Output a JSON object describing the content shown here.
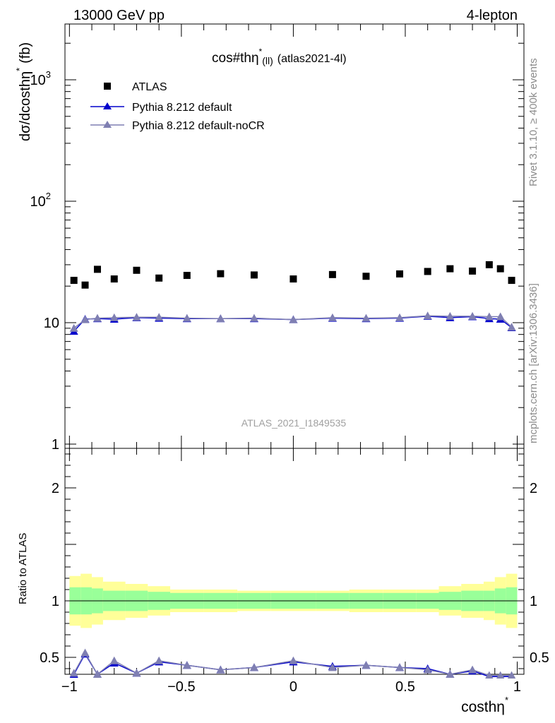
{
  "header": {
    "left": "13000 GeV pp",
    "right": "4-lepton",
    "side_rivet": "Rivet 3.1.10, ≥ 400k events",
    "side_mcplots": "mcplots.cern.ch [arXiv:1306.3436]"
  },
  "chart_data": [
    {
      "type": "scatter",
      "panel": "main",
      "title_main": "cos#thη",
      "title_sup": "*",
      "title_sub": "(ll)",
      "title_tag": "(atlas2021-4l)",
      "watermark": "ATLAS_2021_I1849535",
      "ylabel": "dσ/dcosthη",
      "ylabel_sup": "*",
      "ylabel_unit": "(fb)",
      "yscale": "log",
      "ylim": [
        1,
        3000
      ],
      "xlim": [
        -1.02,
        1.03
      ],
      "yticks": [
        {
          "value": 1,
          "label": "1",
          "sup": ""
        },
        {
          "value": 10,
          "label": "10",
          "sup": ""
        },
        {
          "value": 100,
          "label": "10",
          "sup": "2"
        },
        {
          "value": 1000,
          "label": "10",
          "sup": "3"
        }
      ],
      "legend": [
        "ATLAS",
        "Pythia 8.212 default",
        "Pythia 8.212 default-noCR"
      ],
      "x": [
        -0.98,
        -0.93,
        -0.875,
        -0.8,
        -0.7,
        -0.6,
        -0.475,
        -0.325,
        -0.175,
        0.0,
        0.175,
        0.325,
        0.475,
        0.6,
        0.7,
        0.8,
        0.875,
        0.925,
        0.975
      ],
      "series": [
        {
          "name": "ATLAS",
          "color": "#000000",
          "marker": "square",
          "values": [
            22.3,
            20.4,
            27.5,
            22.9,
            27.0,
            23.3,
            24.5,
            25.3,
            24.7,
            22.9,
            24.9,
            24.1,
            25.2,
            26.4,
            27.8,
            26.6,
            30.0,
            27.8,
            22.3
          ]
        },
        {
          "name": "Pythia 8.212 default",
          "color": "#0000cc",
          "marker": "triangle",
          "values": [
            8.5,
            10.7,
            10.8,
            10.7,
            11.0,
            10.9,
            10.8,
            10.8,
            10.8,
            10.6,
            10.9,
            10.8,
            10.9,
            11.3,
            11.0,
            11.2,
            10.8,
            10.7,
            9.1
          ]
        },
        {
          "name": "Pythia 8.212 default-noCR",
          "color": "#7f7fb2",
          "marker": "triangle",
          "values": [
            9.0,
            10.6,
            10.9,
            11.0,
            11.1,
            11.1,
            10.9,
            10.8,
            10.9,
            10.6,
            11.0,
            10.9,
            11.0,
            11.4,
            11.3,
            11.3,
            11.2,
            11.2,
            9.2
          ]
        }
      ]
    },
    {
      "type": "line",
      "panel": "ratio",
      "ylabel": "Ratio to ATLAS",
      "ylim": [
        0.35,
        2.35
      ],
      "xlim": [
        -1.02,
        1.03
      ],
      "xlabel": "costhη",
      "xlabel_sup": "*",
      "xticks": [
        {
          "value": -1,
          "label": "−1"
        },
        {
          "value": -0.5,
          "label": "−0.5"
        },
        {
          "value": 0,
          "label": "0"
        },
        {
          "value": 0.5,
          "label": "0.5"
        },
        {
          "value": 1,
          "label": "1"
        }
      ],
      "yticks": [
        {
          "value": 0.5,
          "label": "0.5"
        },
        {
          "value": 1,
          "label": "1"
        },
        {
          "value": 2,
          "label": "2"
        }
      ],
      "bands": {
        "edges": [
          -1.0,
          -0.95,
          -0.9,
          -0.85,
          -0.75,
          -0.65,
          -0.55,
          -0.4,
          -0.25,
          -0.1,
          0.1,
          0.25,
          0.4,
          0.55,
          0.65,
          0.75,
          0.85,
          0.9,
          0.95,
          1.0
        ],
        "inner": [
          0.12,
          0.12,
          0.11,
          0.09,
          0.09,
          0.08,
          0.07,
          0.07,
          0.07,
          0.07,
          0.07,
          0.07,
          0.07,
          0.07,
          0.08,
          0.09,
          0.09,
          0.11,
          0.12
        ],
        "outer": [
          0.22,
          0.24,
          0.21,
          0.17,
          0.15,
          0.13,
          0.1,
          0.1,
          0.09,
          0.09,
          0.09,
          0.1,
          0.1,
          0.1,
          0.13,
          0.15,
          0.17,
          0.21,
          0.24
        ],
        "inner_color": "#99ff99",
        "outer_color": "#ffff99"
      },
      "series": [
        {
          "name": "Pythia 8.212 default",
          "color": "#0000cc",
          "values": [
            0.35,
            0.53,
            0.35,
            0.45,
            0.36,
            0.46,
            0.43,
            0.39,
            0.41,
            0.46,
            0.42,
            0.43,
            0.41,
            0.4,
            0.35,
            0.38,
            0.33,
            0.33,
            0.33
          ]
        },
        {
          "name": "Pythia 8.212 default-noCR",
          "color": "#7f7fb2",
          "values": [
            0.36,
            0.54,
            0.35,
            0.47,
            0.36,
            0.47,
            0.43,
            0.39,
            0.41,
            0.47,
            0.41,
            0.43,
            0.41,
            0.39,
            0.35,
            0.39,
            0.34,
            0.34,
            0.34
          ]
        }
      ]
    }
  ]
}
